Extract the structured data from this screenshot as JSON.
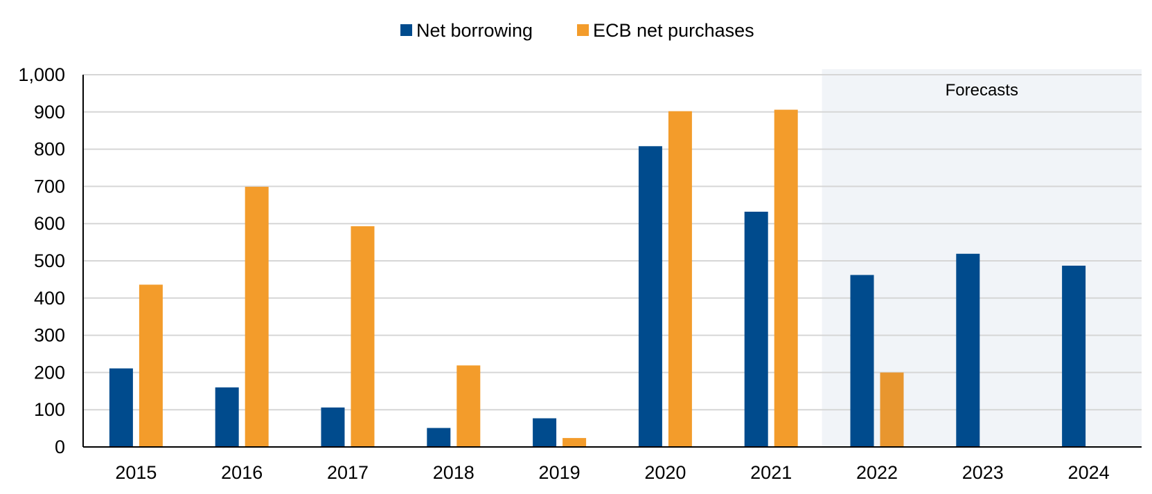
{
  "chart_data": {
    "type": "bar",
    "categories": [
      "2015",
      "2016",
      "2017",
      "2018",
      "2019",
      "2020",
      "2021",
      "2022",
      "2023",
      "2024"
    ],
    "series": [
      {
        "name": "Net borrowing",
        "color": "#004B8D",
        "values": [
          211,
          160,
          106,
          51,
          77,
          808,
          632,
          462,
          519,
          487
        ]
      },
      {
        "name": "ECB net purchases",
        "color": "#F39C2B",
        "values": [
          436,
          699,
          593,
          219,
          24,
          902,
          906,
          200,
          null,
          null
        ]
      }
    ],
    "forecast_values_color": "#E8962F",
    "ylim": [
      0,
      1000
    ],
    "yticks": [
      0,
      100,
      200,
      300,
      400,
      500,
      600,
      700,
      800,
      900,
      1000
    ],
    "ytick_labels": [
      "0",
      "100",
      "200",
      "300",
      "400",
      "500",
      "600",
      "700",
      "800",
      "900",
      "1,000"
    ],
    "grid": true,
    "legend_position": "top-center",
    "forecast_region": {
      "label": "Forecasts",
      "from_category": "2022",
      "to_category": "2024",
      "color": "#F1F4F8"
    }
  }
}
